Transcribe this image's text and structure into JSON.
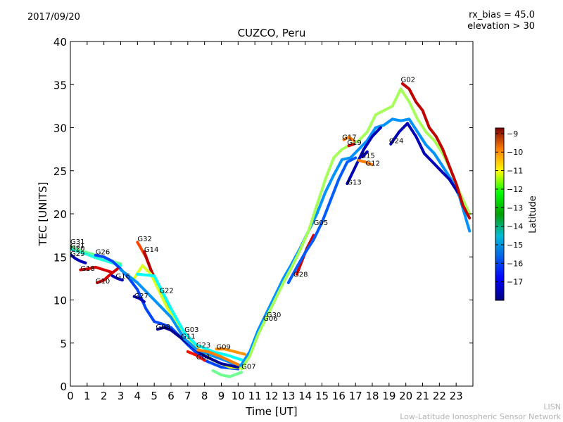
{
  "header": {
    "date": "2017/09/20",
    "rx_bias": "rx_bias = 45.0",
    "elevation": "elevation > 30"
  },
  "footer": {
    "short": "LISN",
    "long": "Low-Latitude Ionospheric Sensor Network"
  },
  "chart_data": {
    "type": "line",
    "title": "CUZCO, Peru",
    "xlabel": "Time [UT]",
    "ylabel": "TEC [UNITS]",
    "xlim": [
      0,
      24
    ],
    "ylim": [
      0,
      40
    ],
    "xticks": [
      0,
      1,
      2,
      3,
      4,
      5,
      6,
      7,
      8,
      9,
      10,
      11,
      12,
      13,
      14,
      15,
      16,
      17,
      18,
      19,
      20,
      21,
      22,
      23
    ],
    "yticks": [
      0,
      5,
      10,
      15,
      20,
      25,
      30,
      35,
      40
    ],
    "grid": false,
    "colorbar": {
      "label": "Latitude",
      "range": [
        -18,
        -8.7
      ],
      "ticks": [
        -9,
        -10,
        -11,
        -12,
        -13,
        -14,
        -15,
        -16,
        -17
      ],
      "colormap": "jet",
      "placement": "right"
    },
    "series": [
      {
        "name": "G31",
        "lat": -13.5,
        "x": [
          0,
          0.5,
          1,
          1.5,
          2,
          2.5,
          3
        ],
        "y": [
          16.2,
          15.8,
          15.5,
          15.2,
          14.8,
          14.5,
          14.2
        ]
      },
      {
        "name": "G21",
        "lat": -14.2,
        "x": [
          0,
          0.5,
          1,
          1.5,
          2,
          2.5,
          3
        ],
        "y": [
          15.9,
          15.6,
          15.3,
          14.9,
          14.6,
          14.3,
          14.0
        ]
      },
      {
        "name": "G29",
        "lat": -17.5,
        "x": [
          0,
          0.3,
          0.6,
          0.9
        ],
        "y": [
          15.3,
          14.8,
          14.5,
          14.3
        ]
      },
      {
        "name": "G18",
        "lat": -9.5,
        "x": [
          0.6,
          1,
          1.5,
          2,
          2.5
        ],
        "y": [
          13.5,
          13.6,
          13.8,
          13.5,
          13.2
        ]
      },
      {
        "name": "G26",
        "lat": -16.2,
        "x": [
          1.5,
          2,
          2.5,
          3,
          3.5,
          4,
          4.5,
          5,
          5.5,
          6,
          7,
          8,
          9,
          10
        ],
        "y": [
          15.2,
          15.0,
          14.5,
          13.6,
          12.5,
          11.2,
          9.0,
          7.5,
          7.2,
          6.8,
          4.8,
          3.0,
          2.2,
          2.0
        ]
      },
      {
        "name": "G10",
        "lat": -9.5,
        "x": [
          1.6,
          2,
          2.4,
          2.8
        ],
        "y": [
          12.0,
          12.3,
          13.0,
          13.6
        ]
      },
      {
        "name": "G16",
        "lat": -17.5,
        "x": [
          2.5,
          2.8,
          3.1
        ],
        "y": [
          12.8,
          12.5,
          12.3
        ]
      },
      {
        "name": "G27",
        "lat": -17.5,
        "x": [
          3.8,
          4.1,
          4.4
        ],
        "y": [
          10.4,
          10.2,
          9.8
        ]
      },
      {
        "name": "G32",
        "lat": -10.5,
        "x": [
          4,
          4.5,
          5,
          5.5,
          6,
          6.5,
          7
        ],
        "y": [
          16.7,
          15.0,
          12.5,
          10.5,
          8.5,
          7.0,
          5.8
        ]
      },
      {
        "name": "G14",
        "lat": -9.2,
        "x": [
          4.4,
          4.8,
          5.2,
          5.6,
          6
        ],
        "y": [
          15.6,
          13.5,
          11.8,
          10.3,
          9.0
        ]
      },
      {
        "name": "G22",
        "lat": -12.5,
        "x": [
          3.8,
          4.3,
          4.8,
          5.3,
          5.8,
          6.5,
          7.5,
          8.5,
          9.5,
          10.3
        ],
        "y": [
          12.5,
          14.0,
          13.0,
          11.0,
          9.0,
          7.0,
          4.5,
          3.0,
          2.2,
          2.1
        ]
      },
      {
        "name": "G08",
        "lat": -17.8,
        "x": [
          5.2,
          5.6,
          6,
          7,
          8,
          9,
          10
        ],
        "y": [
          6.6,
          6.8,
          6.5,
          5.0,
          3.5,
          2.6,
          2.2
        ]
      },
      {
        "name": "G03",
        "lat": -14.5,
        "x": [
          4,
          5,
          6,
          6.8,
          7.5,
          8.5,
          9.5,
          10.3
        ],
        "y": [
          13.0,
          12.8,
          9.0,
          6.2,
          4.8,
          4.0,
          3.5,
          3.0
        ]
      },
      {
        "name": "G11",
        "lat": -15.5,
        "x": [
          3,
          4,
          5,
          6,
          6.8,
          7.5,
          8.5,
          9.5,
          10.3
        ],
        "y": [
          13.5,
          12.0,
          10.0,
          8.0,
          5.5,
          4.3,
          3.5,
          2.8,
          2.3
        ]
      },
      {
        "name": "G23",
        "lat": -11.0,
        "x": [
          7.6,
          8.2,
          9,
          10
        ],
        "y": [
          4.2,
          4.0,
          3.4,
          2.5
        ]
      },
      {
        "name": "G09",
        "lat": -11.2,
        "x": [
          8.7,
          9.2,
          9.8,
          10.4
        ],
        "y": [
          4.3,
          4.3,
          4.0,
          3.7
        ]
      },
      {
        "name": "G01",
        "lat": -10.0,
        "x": [
          7,
          7.5,
          8
        ],
        "y": [
          4.0,
          3.6,
          3.0
        ]
      },
      {
        "name": "G07",
        "lat": -13.5,
        "x": [
          8.5,
          9,
          9.5,
          10.2
        ],
        "y": [
          1.8,
          1.3,
          1.1,
          1.6
        ]
      },
      {
        "name": "G30",
        "lat": -15.5,
        "x": [
          10.2,
          10.7,
          11.2,
          11.7,
          12.2,
          12.7,
          13.2,
          13.7,
          14.2,
          14.7,
          15.2,
          15.7,
          16.2,
          16.7,
          17.2,
          17.7,
          18.2,
          18.7,
          19.2,
          19.7,
          20.2,
          20.7,
          21.2,
          21.7,
          22.2,
          22.7,
          23.2,
          23.8
        ],
        "y": [
          2.5,
          4.0,
          6.5,
          8.5,
          10.5,
          12.5,
          14.2,
          16.0,
          18.0,
          20.0,
          22.5,
          24.5,
          26.3,
          26.5,
          27.5,
          28.5,
          30.0,
          30.3,
          31.0,
          30.8,
          31.0,
          29.5,
          28.0,
          27.0,
          25.5,
          24.0,
          22.0,
          18.0
        ]
      },
      {
        "name": "G06",
        "lat": -13.0,
        "x": [
          10.2,
          10.7,
          11.2,
          11.7,
          12.2,
          12.7,
          13.2,
          13.7,
          14.2,
          14.7,
          15.2,
          15.7,
          16.2,
          16.7,
          17.2,
          17.7,
          18.2,
          18.7,
          19.2,
          19.7,
          20.2,
          20.7,
          21.2,
          21.7,
          22.2,
          22.7,
          23.2,
          23.8
        ],
        "y": [
          2.0,
          3.5,
          6.0,
          8.0,
          10.0,
          12.0,
          13.8,
          15.8,
          18.0,
          21.0,
          24.0,
          26.5,
          27.5,
          28.0,
          28.5,
          29.5,
          31.5,
          32.0,
          32.5,
          34.5,
          33.0,
          31.0,
          29.5,
          28.5,
          27.0,
          25.0,
          22.5,
          20.0
        ]
      },
      {
        "name": "G28",
        "lat": -9.5,
        "x": [
          13.5,
          13.8,
          14.1,
          14.5
        ],
        "y": [
          13.0,
          14.5,
          16.0,
          17.5
        ]
      },
      {
        "name": "G05",
        "lat": -16.0,
        "x": [
          13,
          13.5,
          14,
          14.5,
          15,
          15.5,
          16,
          16.5,
          17
        ],
        "y": [
          12.0,
          13.8,
          15.5,
          17.0,
          19.0,
          21.5,
          24.0,
          26.0,
          26.5
        ]
      },
      {
        "name": "G13",
        "lat": -17.5,
        "x": [
          16.5,
          17,
          17.5,
          18,
          18.5
        ],
        "y": [
          23.5,
          25.5,
          27.5,
          29.0,
          30.0
        ]
      },
      {
        "name": "G17",
        "lat": -11.0,
        "x": [
          16.3,
          16.6,
          16.9
        ],
        "y": [
          28.6,
          28.9,
          28.5
        ]
      },
      {
        "name": "G19",
        "lat": -9.5,
        "x": [
          16.6,
          16.9
        ],
        "y": [
          27.9,
          28.1
        ]
      },
      {
        "name": "G15",
        "lat": -17.5,
        "x": [
          17.4,
          17.7
        ],
        "y": [
          26.6,
          27.2
        ]
      },
      {
        "name": "G12",
        "lat": -11.0,
        "x": [
          17.2,
          17.6,
          18
        ],
        "y": [
          26.2,
          26.0,
          25.7
        ]
      },
      {
        "name": "G24",
        "lat": -17.5,
        "x": [
          19.1,
          19.6,
          20.1,
          20.6,
          21.1,
          21.6,
          22.1,
          22.6,
          23.1
        ],
        "y": [
          28.1,
          29.5,
          30.5,
          29.0,
          27.0,
          26.0,
          25.0,
          24.0,
          22.5
        ]
      },
      {
        "name": "G02",
        "lat": -9.3,
        "x": [
          19.8,
          20.2,
          20.6,
          21,
          21.4,
          21.8,
          22.2,
          22.6,
          23,
          23.4,
          23.8
        ],
        "y": [
          35.1,
          34.5,
          33.0,
          32.0,
          30.0,
          29.0,
          27.5,
          25.5,
          23.5,
          21.0,
          19.5
        ]
      }
    ],
    "annotations": [
      {
        "text": "G31",
        "x": 0.0,
        "y": 16.5
      },
      {
        "text": "G21",
        "x": 0.0,
        "y": 16.0
      },
      {
        "text": "G20",
        "x": 0.0,
        "y": 15.7
      },
      {
        "text": "G29",
        "x": 0.0,
        "y": 15.1
      },
      {
        "text": "G26",
        "x": 1.5,
        "y": 15.3
      },
      {
        "text": "G18",
        "x": 0.6,
        "y": 13.4
      },
      {
        "text": "G10",
        "x": 1.5,
        "y": 11.9
      },
      {
        "text": "G16",
        "x": 2.7,
        "y": 12.5
      },
      {
        "text": "G27",
        "x": 3.8,
        "y": 10.2
      },
      {
        "text": "G32",
        "x": 4.0,
        "y": 16.8
      },
      {
        "text": "G14",
        "x": 4.4,
        "y": 15.6
      },
      {
        "text": "G22",
        "x": 5.3,
        "y": 10.8
      },
      {
        "text": "G08",
        "x": 5.1,
        "y": 6.6
      },
      {
        "text": "G03",
        "x": 6.8,
        "y": 6.3
      },
      {
        "text": "G11",
        "x": 6.6,
        "y": 5.5
      },
      {
        "text": "G23",
        "x": 7.5,
        "y": 4.5
      },
      {
        "text": "G09",
        "x": 8.7,
        "y": 4.3
      },
      {
        "text": "G01",
        "x": 7.5,
        "y": 3.1
      },
      {
        "text": "G07",
        "x": 10.2,
        "y": 2.0
      },
      {
        "text": "G30",
        "x": 11.7,
        "y": 8.0
      },
      {
        "text": "G06",
        "x": 11.5,
        "y": 7.6
      },
      {
        "text": "G28",
        "x": 13.3,
        "y": 12.7
      },
      {
        "text": "G05",
        "x": 14.5,
        "y": 18.7
      },
      {
        "text": "G13",
        "x": 16.5,
        "y": 23.4
      },
      {
        "text": "G17",
        "x": 16.2,
        "y": 28.6
      },
      {
        "text": "G19",
        "x": 16.5,
        "y": 28.0
      },
      {
        "text": "G15",
        "x": 17.3,
        "y": 26.5
      },
      {
        "text": "G12",
        "x": 17.6,
        "y": 25.6
      },
      {
        "text": "G24",
        "x": 19.0,
        "y": 28.2
      },
      {
        "text": "G02",
        "x": 19.7,
        "y": 35.3
      }
    ]
  }
}
